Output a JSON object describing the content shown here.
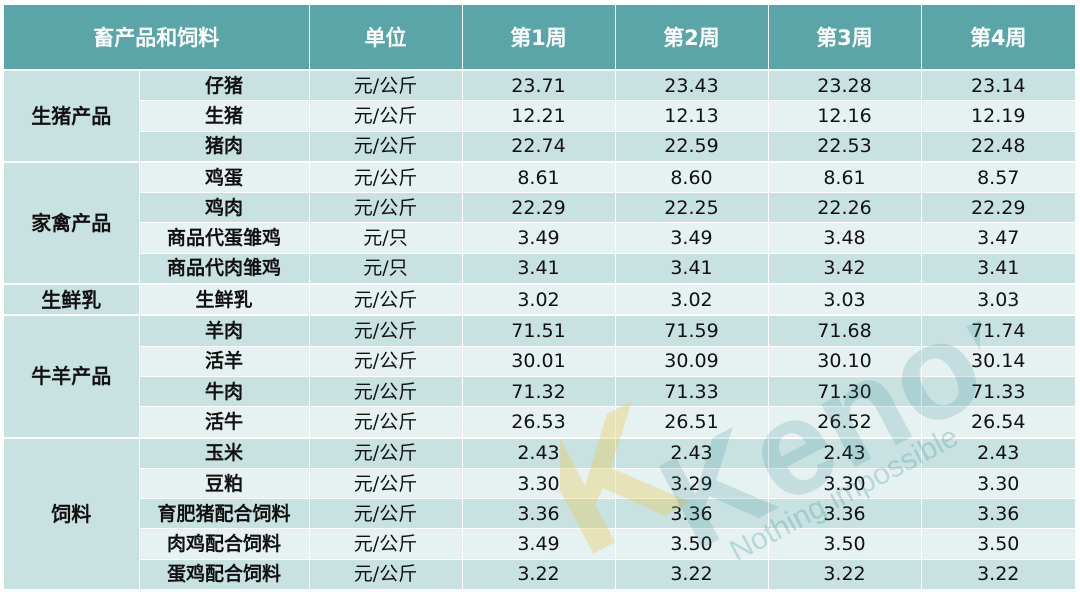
{
  "headers": [
    "畜产品和饲料",
    "单位",
    "第1周",
    "第2周",
    "第3周",
    "第4周"
  ],
  "groups": [
    {
      "name": "生猪产品",
      "rows": [
        {
          "item": "仔猪",
          "unit": "元/公斤",
          "values": [
            "23.71",
            "23.43",
            "23.28",
            "23.14"
          ]
        },
        {
          "item": "生猪",
          "unit": "元/公斤",
          "values": [
            "12.21",
            "12.13",
            "12.16",
            "12.19"
          ]
        },
        {
          "item": "猪肉",
          "unit": "元/公斤",
          "values": [
            "22.74",
            "22.59",
            "22.53",
            "22.48"
          ]
        }
      ]
    },
    {
      "name": "家禽产品",
      "rows": [
        {
          "item": "鸡蛋",
          "unit": "元/公斤",
          "values": [
            "8.61",
            "8.60",
            "8.61",
            "8.57"
          ]
        },
        {
          "item": "鸡肉",
          "unit": "元/公斤",
          "values": [
            "22.29",
            "22.25",
            "22.26",
            "22.29"
          ]
        },
        {
          "item": "商品代蛋雏鸡",
          "unit": "元/只",
          "values": [
            "3.49",
            "3.49",
            "3.48",
            "3.47"
          ]
        },
        {
          "item": "商品代肉雏鸡",
          "unit": "元/只",
          "values": [
            "3.41",
            "3.41",
            "3.42",
            "3.41"
          ]
        }
      ]
    },
    {
      "name": "生鲜乳",
      "rows": [
        {
          "item": "生鲜乳",
          "unit": "元/公斤",
          "values": [
            "3.02",
            "3.02",
            "3.03",
            "3.03"
          ]
        }
      ]
    },
    {
      "name": "牛羊产品",
      "rows": [
        {
          "item": "羊肉",
          "unit": "元/公斤",
          "values": [
            "71.51",
            "71.59",
            "71.68",
            "71.74"
          ]
        },
        {
          "item": "活羊",
          "unit": "元/公斤",
          "values": [
            "30.01",
            "30.09",
            "30.10",
            "30.14"
          ]
        },
        {
          "item": "牛肉",
          "unit": "元/公斤",
          "values": [
            "71.32",
            "71.33",
            "71.30",
            "71.33"
          ]
        },
        {
          "item": "活牛",
          "unit": "元/公斤",
          "values": [
            "26.53",
            "26.51",
            "26.52",
            "26.54"
          ]
        }
      ]
    },
    {
      "name": "饲料",
      "rows": [
        {
          "item": "玉米",
          "unit": "元/公斤",
          "values": [
            "2.43",
            "2.43",
            "2.43",
            "2.43"
          ]
        },
        {
          "item": "豆粕",
          "unit": "元/公斤",
          "values": [
            "3.30",
            "3.29",
            "3.30",
            "3.30"
          ]
        },
        {
          "item": "育肥猪配合饲料",
          "unit": "元/公斤",
          "values": [
            "3.36",
            "3.36",
            "3.36",
            "3.36"
          ]
        },
        {
          "item": "肉鸡配合饲料",
          "unit": "元/公斤",
          "values": [
            "3.49",
            "3.50",
            "3.50",
            "3.50"
          ]
        },
        {
          "item": "蛋鸡配合饲料",
          "unit": "元/公斤",
          "values": [
            "3.22",
            "3.22",
            "3.22",
            "3.22"
          ]
        }
      ]
    }
  ],
  "watermark": {
    "brand": "Kenon",
    "slogan": "Nothing impossible",
    "colors": {
      "k": "#e8c94c",
      "text": "#2f8c8e"
    }
  },
  "colors": {
    "header_bg": "#5aa5a8",
    "row_dark": "#c8e1e1",
    "row_light": "#e6f1f1"
  }
}
